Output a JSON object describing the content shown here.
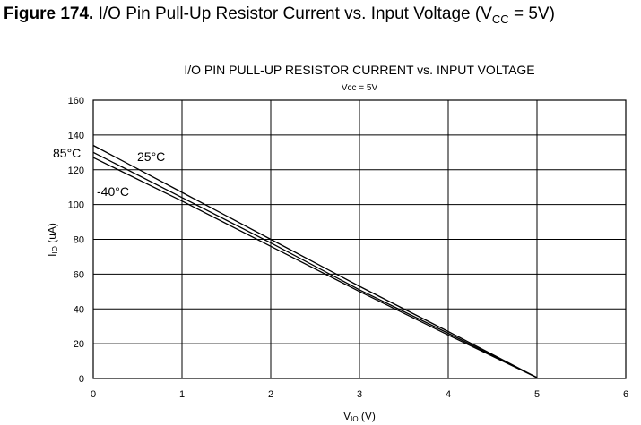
{
  "figure": {
    "label": "Figure 174.",
    "caption_main": "I/O Pin Pull-Up Resistor Current vs. Input Voltage (V",
    "caption_sub": "CC",
    "caption_tail": " = 5V)"
  },
  "chart_data": {
    "type": "line",
    "title": "I/O PIN PULL-UP RESISTOR CURRENT vs. INPUT VOLTAGE",
    "subtitle": "Vcc = 5V",
    "xlabel_main": "V",
    "xlabel_sub": "IO",
    "xlabel_tail": " (V)",
    "ylabel_main": "I",
    "ylabel_sub": "IO",
    "ylabel_tail": " (uA)",
    "xlim": [
      0,
      6
    ],
    "ylim": [
      0,
      160
    ],
    "x_ticks": [
      "0",
      "1",
      "2",
      "3",
      "4",
      "5",
      "6"
    ],
    "y_ticks": [
      "0",
      "20",
      "40",
      "60",
      "80",
      "100",
      "120",
      "140",
      "160"
    ],
    "x_tick_values": [
      0,
      1,
      2,
      3,
      4,
      5,
      6
    ],
    "y_tick_values": [
      0,
      20,
      40,
      60,
      80,
      100,
      120,
      140,
      160
    ],
    "grid": true,
    "series": [
      {
        "name": "85°C",
        "x": [
          0,
          1,
          2,
          3,
          4,
          5
        ],
        "y": [
          134,
          107,
          80,
          53,
          27,
          0.5
        ]
      },
      {
        "name": "25°C",
        "x": [
          0,
          1,
          2,
          3,
          4,
          5
        ],
        "y": [
          130,
          104,
          78,
          51,
          26,
          0.5
        ]
      },
      {
        "name": "-40°C",
        "x": [
          0,
          1,
          2,
          3,
          4,
          5
        ],
        "y": [
          127,
          102,
          76,
          50,
          25,
          0.5
        ]
      }
    ],
    "annotations": [
      "85°C",
      "25°C",
      "-40°C"
    ]
  }
}
